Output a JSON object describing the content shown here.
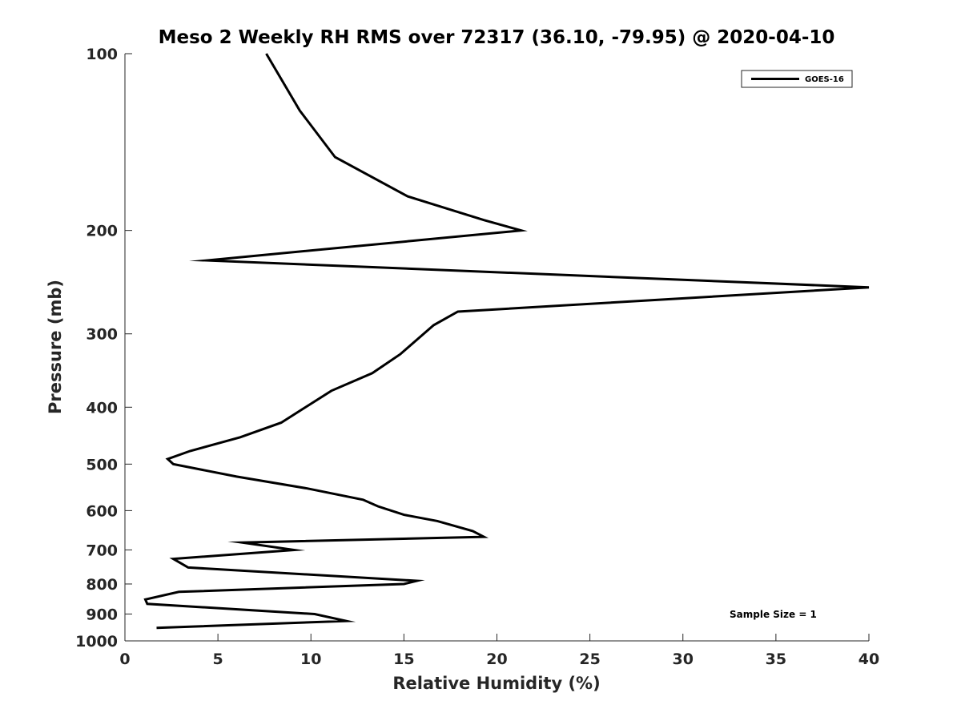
{
  "chart_data": {
    "type": "line",
    "title": "Meso 2 Weekly RH RMS over 72317 (36.10, -79.95) @ 2020-04-10",
    "xlabel": "Relative Humidity (%)",
    "ylabel": "Pressure (mb)",
    "xlim": [
      0,
      40
    ],
    "ylim": [
      100,
      1000
    ],
    "y_scale": "log",
    "y_reversed": true,
    "grid": false,
    "legend_position": "top-right",
    "xticks": [
      0,
      5,
      10,
      15,
      20,
      25,
      30,
      35,
      40
    ],
    "yticks": [
      100,
      200,
      300,
      400,
      500,
      600,
      700,
      800,
      900,
      1000
    ],
    "annotation": "Sample Size = 1",
    "series": [
      {
        "name": "GOES-16",
        "color": "#000000",
        "points": [
          [
            7.6,
            100
          ],
          [
            9.4,
            125
          ],
          [
            11.3,
            150
          ],
          [
            15.2,
            175
          ],
          [
            19.3,
            192
          ],
          [
            21.3,
            200
          ],
          [
            4.4,
            225
          ],
          [
            40.0,
            250
          ],
          [
            17.9,
            275
          ],
          [
            16.6,
            290
          ],
          [
            14.8,
            325
          ],
          [
            13.3,
            350
          ],
          [
            11.1,
            375
          ],
          [
            8.4,
            425
          ],
          [
            6.2,
            450
          ],
          [
            3.5,
            475
          ],
          [
            2.3,
            490
          ],
          [
            2.6,
            500
          ],
          [
            6.0,
            525
          ],
          [
            9.8,
            550
          ],
          [
            12.8,
            575
          ],
          [
            13.6,
            590
          ],
          [
            15.0,
            610
          ],
          [
            16.8,
            625
          ],
          [
            18.7,
            650
          ],
          [
            19.3,
            665
          ],
          [
            6.3,
            680
          ],
          [
            9.1,
            700
          ],
          [
            2.6,
            725
          ],
          [
            3.4,
            750
          ],
          [
            15.7,
            790
          ],
          [
            15.0,
            800
          ],
          [
            2.9,
            825
          ],
          [
            1.1,
            850
          ],
          [
            1.2,
            865
          ],
          [
            10.2,
            900
          ],
          [
            11.9,
            925
          ],
          [
            1.7,
            950
          ]
        ]
      }
    ]
  }
}
